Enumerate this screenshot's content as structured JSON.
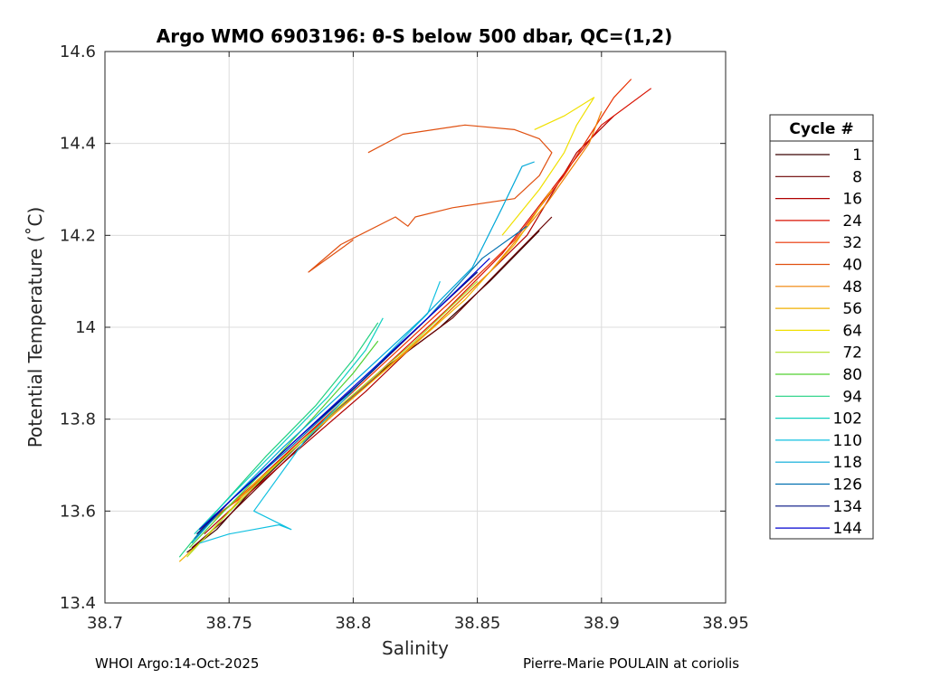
{
  "chart_data": {
    "type": "line",
    "title": "Argo WMO 6903196: θ-S below 500 dbar,  QC=(1,2)",
    "xlabel": "Salinity",
    "ylabel": "Potential Temperature (˚C)",
    "xlim": [
      38.7,
      38.95
    ],
    "ylim": [
      13.4,
      14.6
    ],
    "xticks": [
      38.7,
      38.75,
      38.8,
      38.85,
      38.9,
      38.95
    ],
    "xtick_labels": [
      "38.7",
      "38.75",
      "38.8",
      "38.85",
      "38.9",
      "38.95"
    ],
    "yticks": [
      13.4,
      13.6,
      13.8,
      14.0,
      14.2,
      14.4,
      14.6
    ],
    "ytick_labels": [
      "13.4",
      "13.6",
      "13.8",
      "14",
      "14.2",
      "14.4",
      "14.6"
    ],
    "grid": true,
    "legend": {
      "title": "Cycle #",
      "placement": "outside-right"
    },
    "series": [
      {
        "name": "1",
        "color": "#3a0000",
        "points": [
          [
            38.733,
            13.51
          ],
          [
            38.745,
            13.56
          ],
          [
            38.76,
            13.65
          ],
          [
            38.785,
            13.78
          ],
          [
            38.81,
            13.9
          ],
          [
            38.835,
            14.0
          ],
          [
            38.855,
            14.1
          ],
          [
            38.875,
            14.21
          ]
        ]
      },
      {
        "name": "8",
        "color": "#6a0000",
        "points": [
          [
            38.735,
            13.52
          ],
          [
            38.748,
            13.58
          ],
          [
            38.765,
            13.67
          ],
          [
            38.79,
            13.8
          ],
          [
            38.815,
            13.92
          ],
          [
            38.84,
            14.02
          ],
          [
            38.86,
            14.13
          ],
          [
            38.88,
            14.24
          ]
        ]
      },
      {
        "name": "16",
        "color": "#b00000",
        "points": [
          [
            38.74,
            13.55
          ],
          [
            38.75,
            13.6
          ],
          [
            38.775,
            13.72
          ],
          [
            38.805,
            13.86
          ],
          [
            38.83,
            13.99
          ],
          [
            38.855,
            14.12
          ],
          [
            38.87,
            14.2
          ],
          [
            38.89,
            14.38
          ],
          [
            38.905,
            14.46
          ]
        ]
      },
      {
        "name": "24",
        "color": "#d81000",
        "points": [
          [
            38.738,
            13.56
          ],
          [
            38.752,
            13.62
          ],
          [
            38.778,
            13.75
          ],
          [
            38.81,
            13.9
          ],
          [
            38.838,
            14.04
          ],
          [
            38.86,
            14.16
          ],
          [
            38.88,
            14.3
          ],
          [
            38.9,
            14.44
          ],
          [
            38.92,
            14.52
          ]
        ]
      },
      {
        "name": "32",
        "color": "#e83000",
        "points": [
          [
            38.74,
            13.57
          ],
          [
            38.755,
            13.63
          ],
          [
            38.78,
            13.76
          ],
          [
            38.812,
            13.92
          ],
          [
            38.84,
            14.06
          ],
          [
            38.865,
            14.19
          ],
          [
            38.885,
            14.33
          ],
          [
            38.905,
            14.5
          ],
          [
            38.912,
            14.54
          ]
        ]
      },
      {
        "name": "40",
        "color": "#e05010",
        "points": [
          [
            38.806,
            14.38
          ],
          [
            38.82,
            14.42
          ],
          [
            38.845,
            14.44
          ],
          [
            38.865,
            14.43
          ],
          [
            38.875,
            14.41
          ],
          [
            38.88,
            14.38
          ],
          [
            38.875,
            14.33
          ],
          [
            38.865,
            14.28
          ],
          [
            38.84,
            14.26
          ],
          [
            38.825,
            14.24
          ],
          [
            38.822,
            14.22
          ],
          [
            38.817,
            14.24
          ],
          [
            38.795,
            14.18
          ],
          [
            38.782,
            14.12
          ],
          [
            38.8,
            14.19
          ]
        ]
      },
      {
        "name": "48",
        "color": "#f08000",
        "points": [
          [
            38.737,
            13.55
          ],
          [
            38.75,
            13.61
          ],
          [
            38.775,
            13.73
          ],
          [
            38.805,
            13.87
          ],
          [
            38.832,
            14.0
          ],
          [
            38.855,
            14.12
          ],
          [
            38.878,
            14.27
          ],
          [
            38.895,
            14.4
          ],
          [
            38.9,
            14.47
          ]
        ]
      },
      {
        "name": "56",
        "color": "#f0b000",
        "points": [
          [
            38.73,
            13.49
          ],
          [
            38.742,
            13.55
          ],
          [
            38.76,
            13.66
          ],
          [
            38.79,
            13.8
          ],
          [
            38.82,
            13.94
          ],
          [
            38.845,
            14.06
          ],
          [
            38.865,
            14.18
          ],
          [
            38.88,
            14.3
          ]
        ]
      },
      {
        "name": "64",
        "color": "#f0e000",
        "points": [
          [
            38.873,
            14.43
          ],
          [
            38.885,
            14.46
          ],
          [
            38.897,
            14.5
          ],
          [
            38.89,
            14.44
          ],
          [
            38.885,
            14.38
          ],
          [
            38.875,
            14.3
          ],
          [
            38.86,
            14.2
          ]
        ]
      },
      {
        "name": "72",
        "color": "#b0e020",
        "points": [
          [
            38.733,
            13.5
          ],
          [
            38.745,
            13.57
          ],
          [
            38.765,
            13.68
          ],
          [
            38.795,
            13.83
          ],
          [
            38.825,
            13.97
          ],
          [
            38.85,
            14.1
          ]
        ]
      },
      {
        "name": "80",
        "color": "#50d030",
        "points": [
          [
            38.734,
            13.52
          ],
          [
            38.748,
            13.6
          ],
          [
            38.768,
            13.71
          ],
          [
            38.785,
            13.81
          ],
          [
            38.8,
            13.9
          ],
          [
            38.81,
            13.97
          ]
        ]
      },
      {
        "name": "94",
        "color": "#20d080",
        "points": [
          [
            38.73,
            13.5
          ],
          [
            38.745,
            13.6
          ],
          [
            38.765,
            13.72
          ],
          [
            38.785,
            13.83
          ],
          [
            38.8,
            13.93
          ],
          [
            38.81,
            14.01
          ]
        ]
      },
      {
        "name": "102",
        "color": "#10d0c0",
        "points": [
          [
            38.736,
            13.55
          ],
          [
            38.752,
            13.64
          ],
          [
            38.772,
            13.75
          ],
          [
            38.79,
            13.85
          ],
          [
            38.805,
            13.95
          ],
          [
            38.812,
            14.02
          ]
        ]
      },
      {
        "name": "110",
        "color": "#10c0e0",
        "points": [
          [
            38.738,
            13.53
          ],
          [
            38.75,
            13.55
          ],
          [
            38.76,
            13.56
          ],
          [
            38.77,
            13.57
          ],
          [
            38.775,
            13.56
          ],
          [
            38.76,
            13.6
          ],
          [
            38.78,
            13.75
          ],
          [
            38.81,
            13.92
          ],
          [
            38.83,
            14.03
          ],
          [
            38.835,
            14.1
          ]
        ]
      },
      {
        "name": "118",
        "color": "#00a8d8",
        "points": [
          [
            38.735,
            13.53
          ],
          [
            38.75,
            13.62
          ],
          [
            38.772,
            13.74
          ],
          [
            38.8,
            13.88
          ],
          [
            38.828,
            14.02
          ],
          [
            38.848,
            14.13
          ],
          [
            38.86,
            14.26
          ],
          [
            38.868,
            14.35
          ],
          [
            38.873,
            14.36
          ]
        ]
      },
      {
        "name": "126",
        "color": "#0070b0",
        "points": [
          [
            38.736,
            13.54
          ],
          [
            38.75,
            13.62
          ],
          [
            38.775,
            13.74
          ],
          [
            38.803,
            13.88
          ],
          [
            38.83,
            14.02
          ],
          [
            38.852,
            14.15
          ],
          [
            38.87,
            14.22
          ]
        ]
      },
      {
        "name": "134",
        "color": "#001080",
        "points": [
          [
            38.737,
            13.55
          ],
          [
            38.752,
            13.63
          ],
          [
            38.776,
            13.75
          ],
          [
            38.805,
            13.89
          ],
          [
            38.832,
            14.03
          ],
          [
            38.85,
            14.12
          ]
        ]
      },
      {
        "name": "144",
        "color": "#0000d0",
        "points": [
          [
            38.738,
            13.56
          ],
          [
            38.754,
            13.64
          ],
          [
            38.778,
            13.76
          ],
          [
            38.806,
            13.9
          ],
          [
            38.834,
            14.04
          ],
          [
            38.855,
            14.15
          ]
        ]
      }
    ]
  },
  "footer": {
    "left": "WHOI Argo:14-Oct-2025",
    "right": "Pierre-Marie POULAIN at coriolis"
  }
}
